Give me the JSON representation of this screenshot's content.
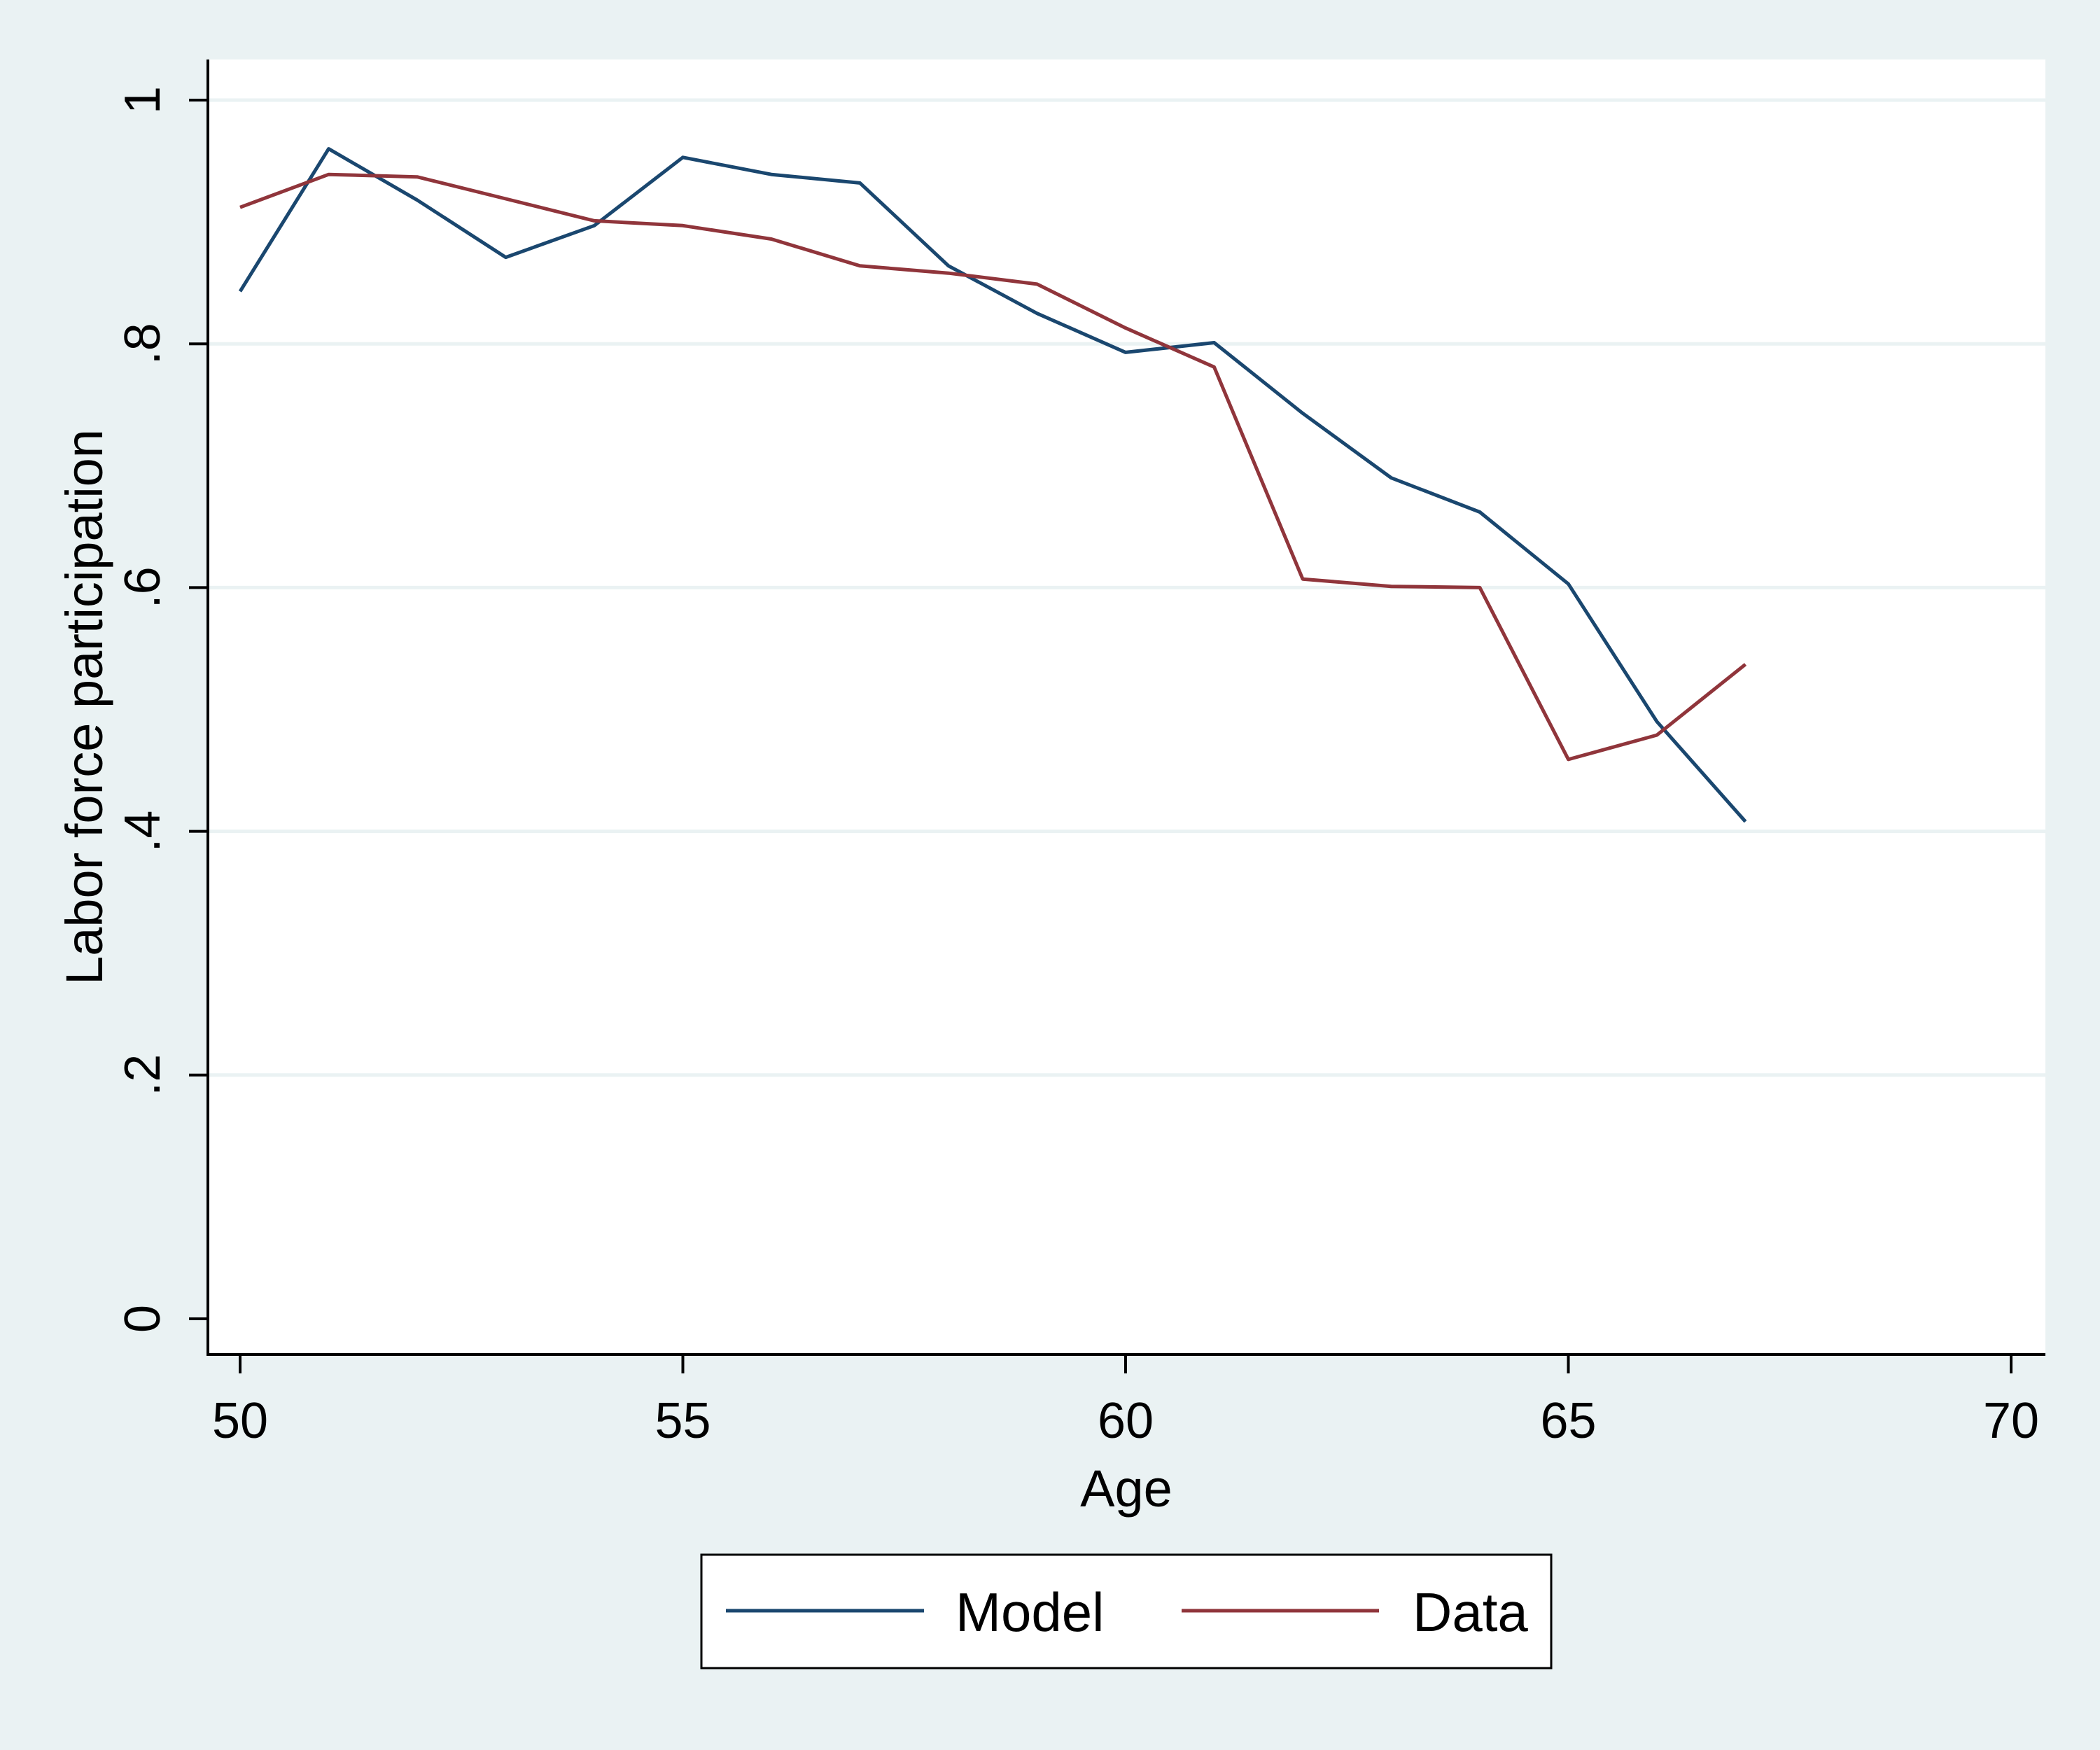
{
  "chart_data": {
    "type": "line",
    "title": "",
    "xlabel": "Age",
    "ylabel": "Labor force participation",
    "xlim": [
      50,
      70
    ],
    "ylim": [
      0,
      1
    ],
    "x_ticks": [
      50,
      55,
      60,
      65,
      70
    ],
    "x_tick_labels": [
      "50",
      "55",
      "60",
      "65",
      "70"
    ],
    "y_ticks": [
      0,
      0.2,
      0.4,
      0.6,
      0.8,
      1
    ],
    "y_tick_labels": [
      "0",
      ".2",
      ".4",
      ".6",
      ".8",
      "1"
    ],
    "grid": true,
    "legend_position": "bottom",
    "x": [
      50,
      51,
      52,
      53,
      54,
      55,
      56,
      57,
      58,
      59,
      60,
      61,
      62,
      63,
      64,
      65,
      66,
      67
    ],
    "series": [
      {
        "name": "Model",
        "color": "#1a476f",
        "values": [
          0.843,
          0.96,
          0.918,
          0.871,
          0.897,
          0.953,
          0.939,
          0.932,
          0.864,
          0.825,
          0.793,
          0.801,
          0.743,
          0.69,
          0.662,
          0.603,
          0.49,
          0.408
        ]
      },
      {
        "name": "Data",
        "color": "#90353b",
        "values": [
          0.912,
          0.939,
          0.937,
          0.919,
          0.901,
          0.897,
          0.886,
          0.864,
          0.858,
          0.849,
          0.813,
          0.781,
          0.607,
          0.601,
          0.6,
          0.459,
          0.479,
          0.537
        ]
      }
    ]
  }
}
